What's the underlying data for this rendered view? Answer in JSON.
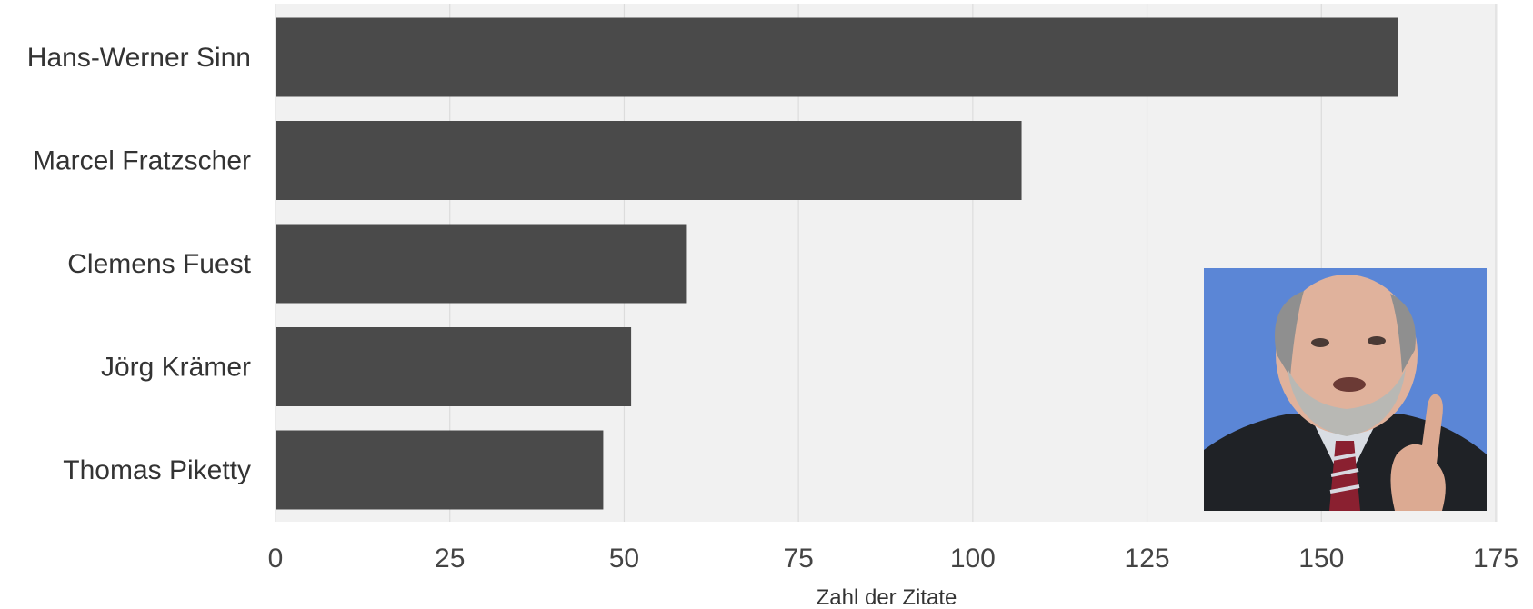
{
  "chart_data": {
    "type": "bar",
    "orientation": "horizontal",
    "categories": [
      "Hans-Werner Sinn",
      "Marcel Fratzscher",
      "Clemens Fuest",
      "Jörg Krämer",
      "Thomas Piketty"
    ],
    "values": [
      161,
      107,
      59,
      51,
      47
    ],
    "xlabel": "Zahl der Zitate",
    "ylabel": "",
    "xlim": [
      0,
      175
    ],
    "xticks": [
      "0",
      "25",
      "50",
      "75",
      "100",
      "125",
      "150",
      "175"
    ],
    "grid": true,
    "legend": "none"
  },
  "colors": {
    "bar": "#4a4a4a",
    "panel_background": "#f1f1f1",
    "gridline": "#dcdcdc",
    "photo_background": "#5b86d6"
  },
  "inset_photo": {
    "depicts": "portrait of a bald bearded man in a suit raising his index finger"
  }
}
